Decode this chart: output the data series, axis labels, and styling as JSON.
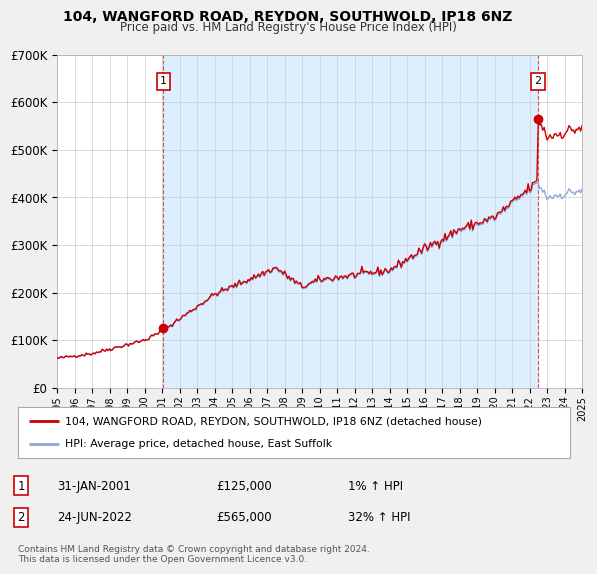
{
  "title": "104, WANGFORD ROAD, REYDON, SOUTHWOLD, IP18 6NZ",
  "subtitle": "Price paid vs. HM Land Registry's House Price Index (HPI)",
  "ylim": [
    0,
    700000
  ],
  "yticks": [
    0,
    100000,
    200000,
    300000,
    400000,
    500000,
    600000,
    700000
  ],
  "ytick_labels": [
    "£0",
    "£100K",
    "£200K",
    "£300K",
    "£400K",
    "£500K",
    "£600K",
    "£700K"
  ],
  "sale1_date": 2001.08,
  "sale1_price": 125000,
  "sale2_date": 2022.48,
  "sale2_price": 565000,
  "line_color_red": "#cc0000",
  "line_color_blue": "#88aadd",
  "shade_color": "#ddeeff",
  "vline_color": "#cc4444",
  "background_color": "#f0f0f0",
  "plot_bg_color": "#ffffff",
  "grid_color": "#cccccc",
  "legend_entries": [
    "104, WANGFORD ROAD, REYDON, SOUTHWOLD, IP18 6NZ (detached house)",
    "HPI: Average price, detached house, East Suffolk"
  ],
  "footnote": "Contains HM Land Registry data © Crown copyright and database right 2024.\nThis data is licensed under the Open Government Licence v3.0.",
  "xstart": 1995,
  "xend": 2025
}
